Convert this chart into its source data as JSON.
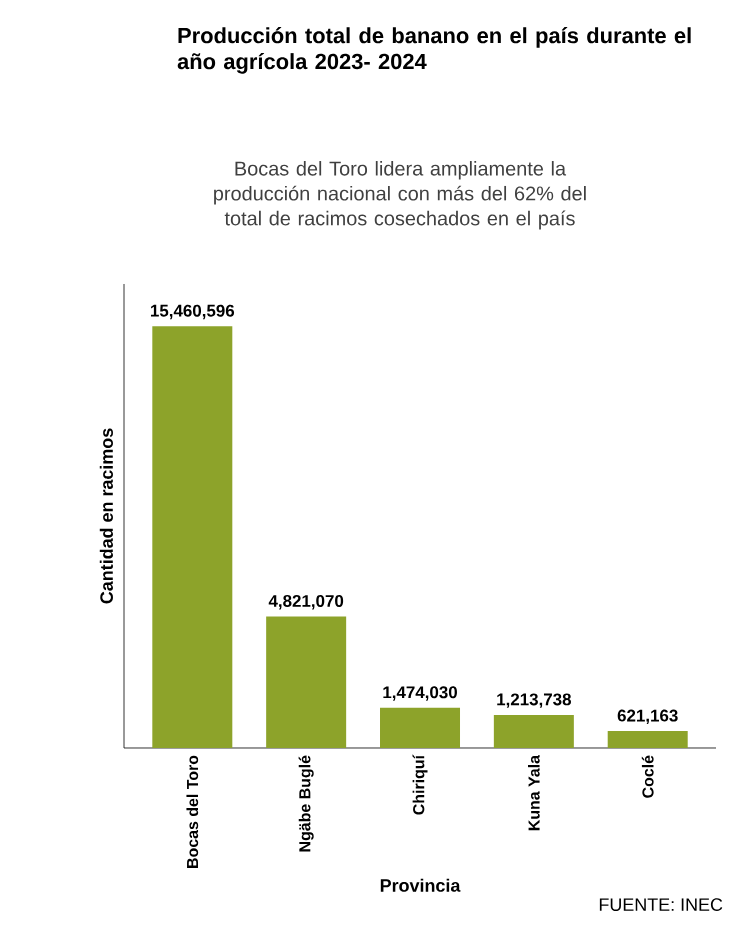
{
  "chart_data": {
    "type": "bar",
    "title": "Producción total de banano en el país durante el año agrícola  2023- 2024",
    "subtitle": "Bocas del Toro lidera ampliamente la producción nacional con más del 62% del total de racimos cosechados en el país",
    "xlabel": "Provincia",
    "ylabel": "Cantidad en racimos",
    "categories": [
      "Bocas del Toro",
      "Ngäbe Buglé",
      "Chiriquí",
      "Kuna Yala",
      "Coclé"
    ],
    "values": [
      15460596,
      4821070,
      1474030,
      1213738,
      621163
    ],
    "value_labels": [
      "15,460,596",
      "4,821,070",
      "1,474,030",
      "1,213,738",
      "621,163"
    ],
    "color": "#8da32a",
    "annotations": [
      "FUENTE: INEC"
    ]
  }
}
